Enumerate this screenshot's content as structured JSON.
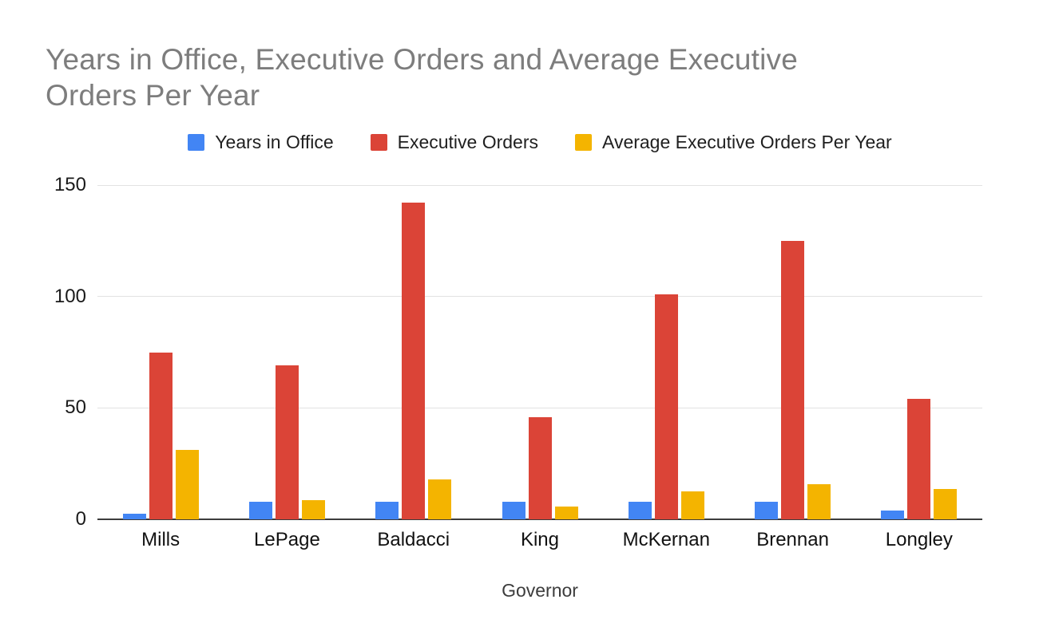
{
  "chart_data": {
    "type": "bar",
    "title": "Years in Office, Executive Orders and Average Executive Orders Per Year",
    "xlabel": "Governor",
    "ylabel": "",
    "ylim": [
      0,
      150
    ],
    "yticks": [
      0,
      50,
      100,
      150
    ],
    "grid": true,
    "legend_position": "top",
    "categories": [
      "Mills",
      "LePage",
      "Baldacci",
      "King",
      "McKernan",
      "Brennan",
      "Longley"
    ],
    "series": [
      {
        "name": "Years in Office",
        "color": "#4285F4",
        "values": [
          2.4,
          8,
          8,
          8,
          8,
          8,
          4
        ]
      },
      {
        "name": "Executive Orders",
        "color": "#DB4437",
        "values": [
          75,
          69,
          142,
          46,
          101,
          125,
          54
        ]
      },
      {
        "name": "Average Executive Orders Per Year",
        "color": "#F4B400",
        "values": [
          31,
          8.6,
          17.8,
          5.8,
          12.6,
          15.7,
          13.5
        ]
      }
    ]
  }
}
